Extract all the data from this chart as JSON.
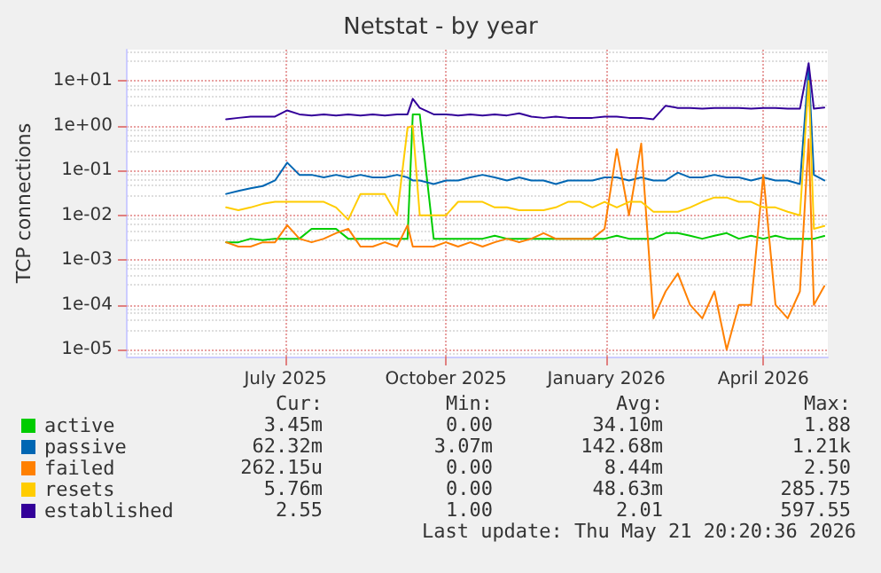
{
  "chart_data": {
    "type": "line",
    "title": "Netstat - by year",
    "ylabel": "TCP connections",
    "log": "y",
    "grid": true,
    "legend": "bottom left",
    "marker": "none",
    "line_style": "solid",
    "xlim": [
      "2025-04-01",
      "2026-05-08"
    ],
    "xticks": [
      {
        "value": "2025-07-01",
        "label": "July 2025"
      },
      {
        "value": "2025-10-01",
        "label": "October 2025"
      },
      {
        "value": "2026-01-01",
        "label": "January 2026"
      },
      {
        "value": "2026-04-01",
        "label": "April 2026"
      }
    ],
    "ylim": [
      7e-06,
      50
    ],
    "yticks": [
      {
        "value": 1e-05,
        "label": "1e-05"
      },
      {
        "value": 0.0001,
        "label": "1e-04"
      },
      {
        "value": 0.001,
        "label": "1e-03"
      },
      {
        "value": 0.01,
        "label": "1e-02"
      },
      {
        "value": 0.1,
        "label": "1e-01"
      },
      {
        "value": 1,
        "label": "1e+00"
      },
      {
        "value": 10,
        "label": "1e+01"
      }
    ],
    "x": [
      "2025-05-28",
      "2025-06-04",
      "2025-06-11",
      "2025-06-18",
      "2025-06-25",
      "2025-07-02",
      "2025-07-09",
      "2025-07-16",
      "2025-07-23",
      "2025-07-30",
      "2025-08-06",
      "2025-08-13",
      "2025-08-20",
      "2025-08-27",
      "2025-09-03",
      "2025-09-09",
      "2025-09-12",
      "2025-09-16",
      "2025-09-24",
      "2025-10-01",
      "2025-10-08",
      "2025-10-15",
      "2025-10-22",
      "2025-10-29",
      "2025-11-05",
      "2025-11-12",
      "2025-11-19",
      "2025-11-26",
      "2025-12-03",
      "2025-12-10",
      "2025-12-17",
      "2025-12-24",
      "2025-12-31",
      "2026-01-07",
      "2026-01-14",
      "2026-01-21",
      "2026-01-28",
      "2026-02-04",
      "2026-02-11",
      "2026-02-18",
      "2026-02-25",
      "2026-03-04",
      "2026-03-11",
      "2026-03-18",
      "2026-03-25",
      "2026-04-01",
      "2026-04-08",
      "2026-04-15",
      "2026-04-22",
      "2026-04-27",
      "2026-04-30",
      "2026-05-06"
    ],
    "series": [
      {
        "name": "active",
        "color": "#00cc00",
        "values": [
          0.0025,
          0.0025,
          0.003,
          0.0028,
          0.003,
          0.003,
          0.003,
          0.005,
          0.005,
          0.005,
          0.003,
          0.003,
          0.003,
          0.003,
          0.003,
          0.003,
          1.8,
          1.8,
          0.003,
          0.003,
          0.003,
          0.003,
          0.003,
          0.0035,
          0.003,
          0.003,
          0.003,
          0.003,
          0.003,
          0.003,
          0.003,
          0.003,
          0.003,
          0.0035,
          0.003,
          0.003,
          0.003,
          0.004,
          0.004,
          0.0035,
          0.003,
          0.0035,
          0.004,
          0.003,
          0.0035,
          0.003,
          0.0035,
          0.003,
          0.003,
          0.003,
          0.003,
          0.00345
        ]
      },
      {
        "name": "passive",
        "color": "#0066b3",
        "values": [
          0.03,
          0.035,
          0.04,
          0.045,
          0.06,
          0.15,
          0.08,
          0.08,
          0.07,
          0.08,
          0.07,
          0.08,
          0.07,
          0.07,
          0.08,
          0.07,
          0.06,
          0.06,
          0.05,
          0.06,
          0.06,
          0.07,
          0.08,
          0.07,
          0.06,
          0.07,
          0.06,
          0.06,
          0.05,
          0.06,
          0.06,
          0.06,
          0.07,
          0.07,
          0.06,
          0.07,
          0.06,
          0.06,
          0.09,
          0.07,
          0.07,
          0.08,
          0.07,
          0.07,
          0.06,
          0.07,
          0.06,
          0.06,
          0.05,
          20,
          0.08,
          0.06
        ]
      },
      {
        "name": "failed",
        "color": "#ff8000",
        "values": [
          0.0025,
          0.002,
          0.002,
          0.0025,
          0.0025,
          0.006,
          0.003,
          0.0025,
          0.003,
          0.004,
          0.005,
          0.002,
          0.002,
          0.0025,
          0.002,
          0.006,
          0.002,
          0.002,
          0.002,
          0.0025,
          0.002,
          0.0025,
          0.002,
          0.0025,
          0.003,
          0.0025,
          0.003,
          0.004,
          0.003,
          0.003,
          0.003,
          0.003,
          0.005,
          0.3,
          0.01,
          0.4,
          5e-05,
          0.0002,
          0.0005,
          0.0001,
          5e-05,
          0.0002,
          1e-05,
          0.0001,
          0.0001,
          0.08,
          0.0001,
          5e-05,
          0.0002,
          0.5,
          0.0001,
          0.000262
        ]
      },
      {
        "name": "resets",
        "color": "#ffcc00",
        "values": [
          0.015,
          0.013,
          0.015,
          0.018,
          0.02,
          0.02,
          0.02,
          0.02,
          0.02,
          0.015,
          0.008,
          0.03,
          0.03,
          0.03,
          0.01,
          0.9,
          1,
          0.01,
          0.01,
          0.01,
          0.02,
          0.02,
          0.02,
          0.015,
          0.015,
          0.013,
          0.013,
          0.013,
          0.015,
          0.02,
          0.02,
          0.015,
          0.02,
          0.015,
          0.02,
          0.02,
          0.012,
          0.012,
          0.012,
          0.015,
          0.02,
          0.025,
          0.025,
          0.02,
          0.02,
          0.015,
          0.015,
          0.012,
          0.01,
          10,
          0.005,
          0.00576
        ]
      },
      {
        "name": "established",
        "color": "#330099",
        "values": [
          1.4,
          1.5,
          1.6,
          1.6,
          1.6,
          2.2,
          1.8,
          1.7,
          1.8,
          1.7,
          1.8,
          1.7,
          1.8,
          1.7,
          1.8,
          1.8,
          4,
          2.5,
          1.8,
          1.8,
          1.7,
          1.8,
          1.7,
          1.8,
          1.7,
          1.9,
          1.6,
          1.5,
          1.6,
          1.5,
          1.5,
          1.5,
          1.6,
          1.6,
          1.5,
          1.5,
          1.4,
          2.8,
          2.5,
          2.5,
          2.4,
          2.5,
          2.5,
          2.5,
          2.4,
          2.5,
          2.5,
          2.4,
          2.4,
          25,
          2.4,
          2.55
        ]
      }
    ],
    "annotations": [
      "Cur:",
      "Min:",
      "Avg:",
      "Max:",
      "3.45m",
      "0.00",
      "34.10m",
      "1.88",
      "62.32m",
      "3.07m",
      "142.68m",
      "1.21k",
      "262.15u",
      "0.00",
      "8.44m",
      "2.50",
      "5.76m",
      "0.00",
      "48.63m",
      "285.75",
      "2.55",
      "1.00",
      "2.01",
      "597.55",
      "Last update: Thu May 21 20:20:36 2026"
    ]
  }
}
